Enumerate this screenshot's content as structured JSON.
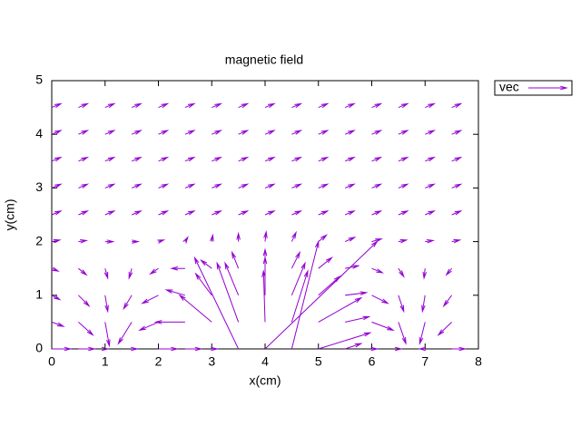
{
  "chart_data": {
    "type": "vector",
    "title": "magnetic field",
    "xlabel": "x(cm)",
    "ylabel": "y(cm)",
    "xlim": [
      0,
      8
    ],
    "xticks": [
      0,
      1,
      2,
      3,
      4,
      5,
      6,
      7,
      8
    ],
    "ylim": [
      0,
      5
    ],
    "yticks": [
      0,
      1,
      2,
      3,
      4,
      5
    ],
    "legend": "top-right-outside",
    "series": [
      {
        "name": "vec",
        "color": "#9400d3",
        "x": [
          0,
          0.5,
          1,
          1.5,
          2,
          2.5,
          3,
          3.5,
          4,
          4.5,
          5,
          5.5,
          6,
          6.5,
          7,
          7.5,
          0,
          0.5,
          1,
          1.5,
          2,
          2.5,
          3,
          3.5,
          4,
          4.5,
          5,
          5.5,
          6,
          6.5,
          7,
          7.5,
          0,
          0.5,
          1,
          1.5,
          2,
          2.5,
          3,
          3.5,
          4,
          4.5,
          5,
          5.5,
          6,
          6.5,
          7,
          7.5,
          0,
          0.5,
          1,
          1.5,
          2,
          2.5,
          3,
          3.5,
          4,
          4.5,
          5,
          5.5,
          6,
          6.5,
          7,
          7.5,
          0,
          0.5,
          1,
          1.5,
          2,
          2.5,
          3,
          3.5,
          4,
          4.5,
          5,
          5.5,
          6,
          6.5,
          7,
          7.5,
          0,
          0.5,
          1,
          1.5,
          2,
          2.5,
          3,
          3.5,
          4,
          4.5,
          5,
          5.5,
          6,
          6.5,
          7,
          7.5,
          0,
          0.5,
          1,
          1.5,
          2,
          2.5,
          3,
          3.5,
          4,
          4.5,
          5,
          5.5,
          6,
          6.5,
          7,
          7.5,
          0,
          0.5,
          1,
          1.5,
          2,
          2.5,
          3,
          3.5,
          4,
          4.5,
          5,
          5.5,
          6,
          6.5,
          7,
          7.5,
          0,
          0.5,
          1,
          1.5,
          2,
          2.5,
          3,
          3.5,
          4,
          4.5,
          5,
          5.5,
          6,
          6.5,
          7,
          7.5,
          0,
          0.5,
          1,
          1.5,
          2,
          2.5,
          3,
          3.5,
          4,
          4.5,
          5,
          5.5,
          6,
          6.5,
          7,
          7.5
        ],
        "y": [
          0,
          0,
          0,
          0,
          0,
          0,
          0,
          0,
          0,
          0,
          0,
          0,
          0,
          0,
          0,
          0,
          0.5,
          0.5,
          0.5,
          0.5,
          0.5,
          0.5,
          0.5,
          0.5,
          0.5,
          0.5,
          0.5,
          0.5,
          0.5,
          0.5,
          0.5,
          0.5,
          1,
          1,
          1,
          1,
          1,
          1,
          1,
          1,
          1,
          1,
          1,
          1,
          1,
          1,
          1,
          1,
          1.5,
          1.5,
          1.5,
          1.5,
          1.5,
          1.5,
          1.5,
          1.5,
          1.5,
          1.5,
          1.5,
          1.5,
          1.5,
          1.5,
          1.5,
          1.5,
          2,
          2,
          2,
          2,
          2,
          2,
          2,
          2,
          2,
          2,
          2,
          2,
          2,
          2,
          2,
          2,
          2.5,
          2.5,
          2.5,
          2.5,
          2.5,
          2.5,
          2.5,
          2.5,
          2.5,
          2.5,
          2.5,
          2.5,
          2.5,
          2.5,
          2.5,
          2.5,
          3,
          3,
          3,
          3,
          3,
          3,
          3,
          3,
          3,
          3,
          3,
          3,
          3,
          3,
          3,
          3,
          3.5,
          3.5,
          3.5,
          3.5,
          3.5,
          3.5,
          3.5,
          3.5,
          3.5,
          3.5,
          3.5,
          3.5,
          3.5,
          3.5,
          3.5,
          3.5,
          4,
          4,
          4,
          4,
          4,
          4,
          4,
          4,
          4,
          4,
          4,
          4,
          4,
          4,
          4,
          4,
          4.5,
          4.5,
          4.5,
          4.5,
          4.5,
          4.5,
          4.5,
          4.5,
          4.5,
          4.5,
          4.5,
          4.5,
          4.5,
          4.5,
          4.5,
          4.5
        ],
        "dx": [
          0.35,
          0.3,
          0.05,
          0.1,
          0.35,
          0.3,
          0.1,
          -0.82,
          2.1,
          0.5,
          0.97,
          0.3,
          0.1,
          0.05,
          -0.1,
          0.25,
          0.22,
          0.27,
          0.08,
          -0.25,
          -0.35,
          -0.55,
          -0.6,
          -0.4,
          -0.03,
          0.3,
          0.8,
          0.45,
          0.4,
          0.14,
          -0.1,
          -0.25,
          0.15,
          0.2,
          0.05,
          -0.15,
          -0.3,
          -0.35,
          -0.3,
          -0.25,
          0,
          0.25,
          0.4,
          0.4,
          0.3,
          0.1,
          -0.05,
          -0.15,
          0.12,
          0.15,
          0.05,
          -0.05,
          -0.15,
          -0.25,
          -0.2,
          -0.12,
          0,
          0.15,
          0.25,
          0.25,
          0.2,
          0.1,
          -0.02,
          -0.1,
          0.15,
          0.15,
          0.15,
          0.12,
          0.1,
          0.05,
          0.02,
          0,
          0.02,
          0.08,
          0.15,
          0.18,
          0.18,
          0.15,
          0.15,
          0.15,
          0.17,
          0.17,
          0.17,
          0.17,
          0.17,
          0.17,
          0.17,
          0.17,
          0.17,
          0.17,
          0.17,
          0.17,
          0.17,
          0.17,
          0.17,
          0.17,
          0.17,
          0.17,
          0.17,
          0.17,
          0.17,
          0.17,
          0.17,
          0.17,
          0.17,
          0.17,
          0.17,
          0.17,
          0.17,
          0.17,
          0.17,
          0.17,
          0.17,
          0.17,
          0.17,
          0.17,
          0.17,
          0.17,
          0.17,
          0.17,
          0.17,
          0.17,
          0.17,
          0.17,
          0.17,
          0.17,
          0.17,
          0.17,
          0.17,
          0.17,
          0.17,
          0.17,
          0.17,
          0.17,
          0.17,
          0.17,
          0.17,
          0.17,
          0.17,
          0.17,
          0.17,
          0.17,
          0.17,
          0.17,
          0.17,
          0.17,
          0.17,
          0.17,
          0.17,
          0.17,
          0.17,
          0.17,
          0.17,
          0.17,
          0.17,
          0.17,
          0.17,
          0.17,
          0.17,
          0.17
        ],
        "dy": [
          0,
          0,
          0,
          0,
          0,
          0,
          0,
          1.7,
          2.0,
          2.0,
          0.3,
          0.1,
          0,
          0,
          0,
          0,
          -0.08,
          -0.24,
          -0.44,
          -0.4,
          -0.15,
          0,
          0.5,
          1.1,
          0.95,
          0.95,
          0.45,
          0.1,
          -0.15,
          -0.4,
          -0.4,
          -0.24,
          -0.08,
          -0.2,
          -0.3,
          -0.25,
          -0.15,
          0.1,
          0.4,
          0.6,
          0.7,
          0.6,
          0.35,
          0.05,
          -0.15,
          -0.3,
          -0.3,
          -0.2,
          -0.05,
          -0.12,
          -0.18,
          -0.18,
          -0.1,
          0,
          0.15,
          0.3,
          0.35,
          0.3,
          0.2,
          0.05,
          -0.08,
          -0.15,
          -0.18,
          -0.12,
          0.03,
          0.02,
          0,
          0,
          0.03,
          0.08,
          0.12,
          0.15,
          0.18,
          0.17,
          0.12,
          0.08,
          0.05,
          0.03,
          0.02,
          0.03,
          0.07,
          0.07,
          0.07,
          0.07,
          0.07,
          0.07,
          0.07,
          0.07,
          0.07,
          0.07,
          0.07,
          0.07,
          0.07,
          0.07,
          0.07,
          0.07,
          0.07,
          0.07,
          0.07,
          0.07,
          0.07,
          0.07,
          0.07,
          0.07,
          0.07,
          0.07,
          0.07,
          0.07,
          0.07,
          0.07,
          0.07,
          0.07,
          0.07,
          0.07,
          0.07,
          0.07,
          0.07,
          0.07,
          0.07,
          0.07,
          0.07,
          0.07,
          0.07,
          0.07,
          0.07,
          0.07,
          0.07,
          0.07,
          0.07,
          0.07,
          0.07,
          0.07,
          0.07,
          0.07,
          0.07,
          0.07,
          0.07,
          0.07,
          0.07,
          0.07,
          0.07,
          0.07,
          0.07,
          0.07,
          0.07,
          0.07,
          0.07,
          0.07,
          0.07,
          0.07,
          0.07,
          0.07,
          0.07,
          0.07,
          0.07,
          0.07,
          0.07,
          0.07,
          0.07,
          0.07
        ]
      }
    ]
  }
}
